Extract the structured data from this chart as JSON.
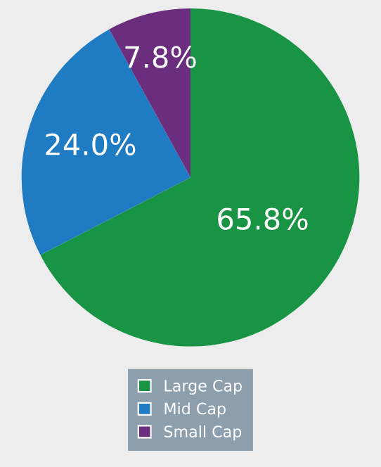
{
  "chart_data": {
    "type": "pie",
    "categories": [
      "Large Cap",
      "Mid Cap",
      "Small Cap"
    ],
    "values": [
      65.8,
      24.0,
      7.8
    ],
    "colors": [
      "#189444",
      "#1f7bc2",
      "#6b2d7e"
    ],
    "value_labels": [
      "65.8%",
      "24.0%",
      "7.8%"
    ],
    "legend": "bottom"
  }
}
